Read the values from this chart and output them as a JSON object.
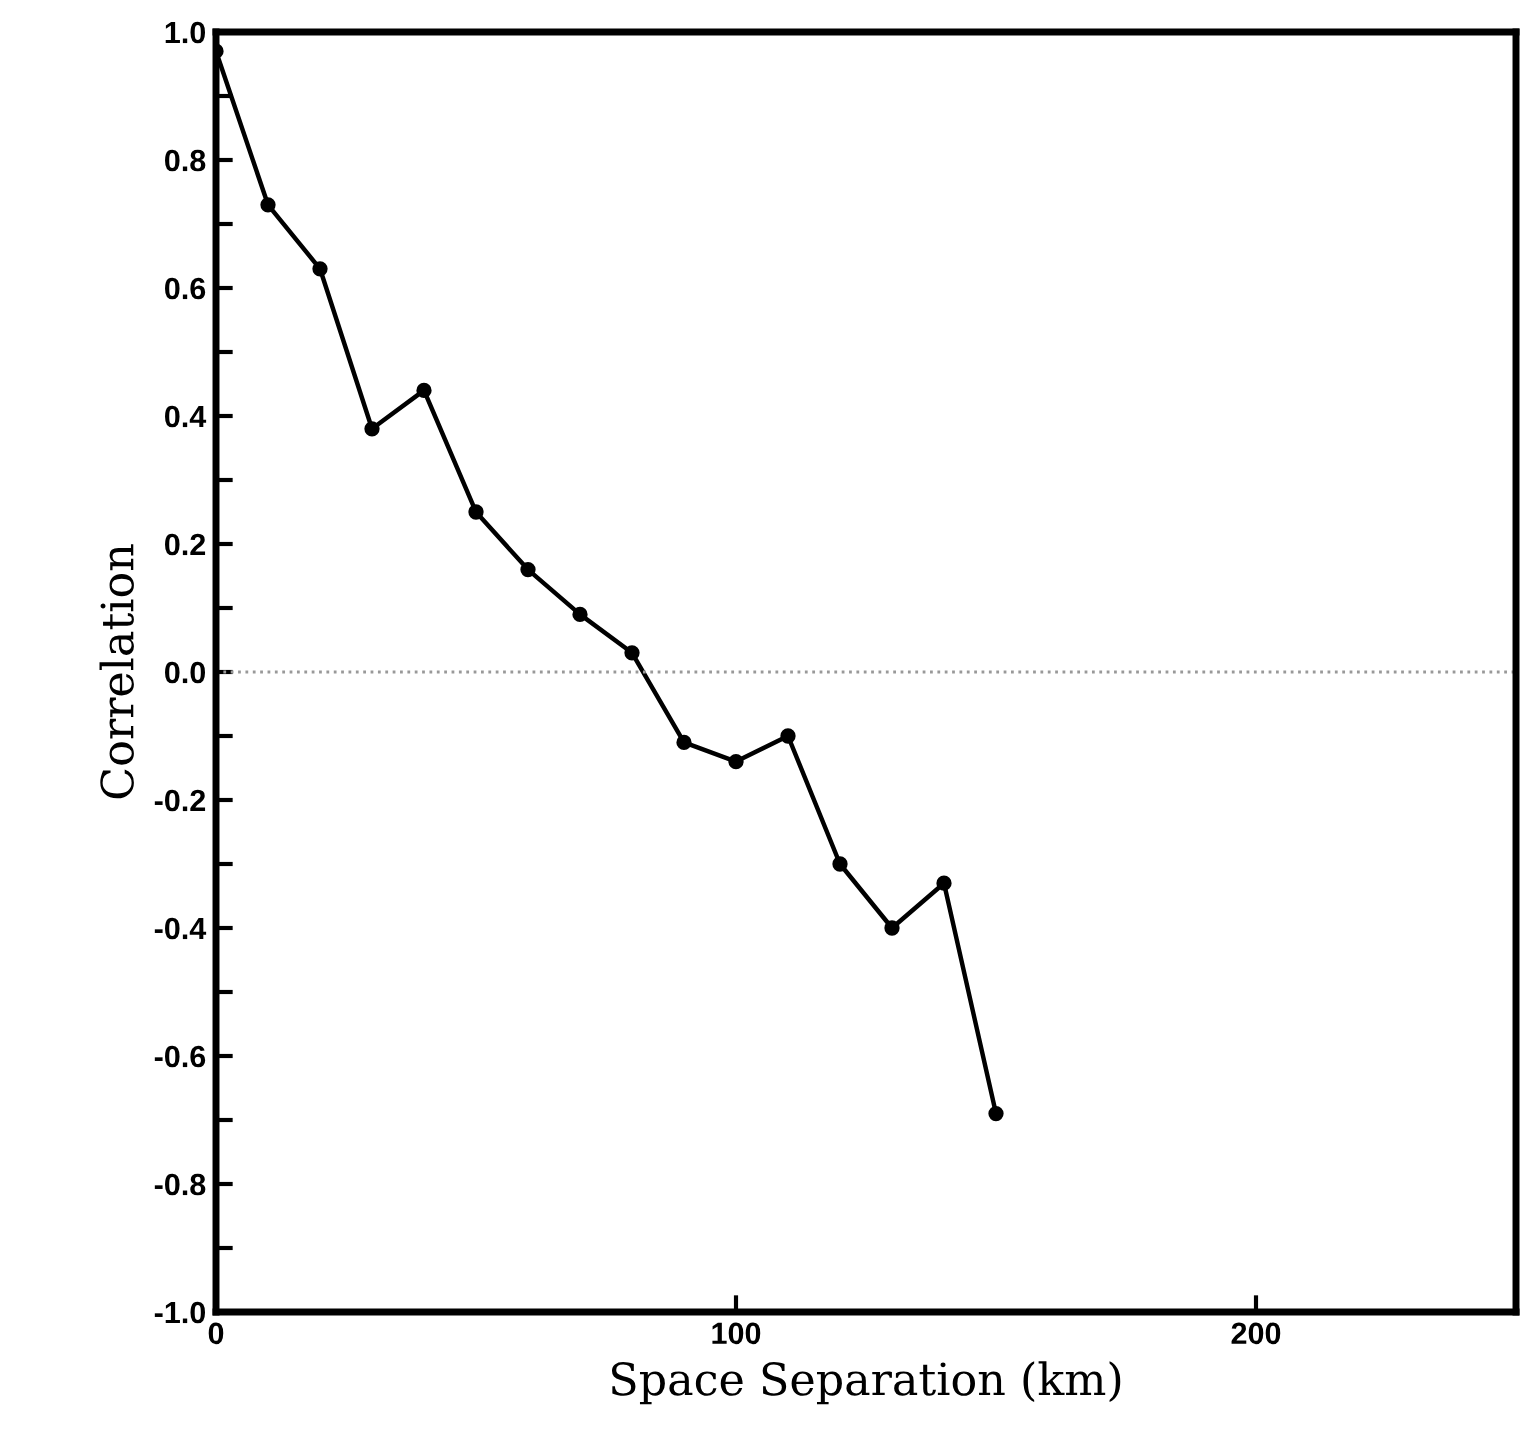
{
  "chart_data": {
    "type": "line",
    "xlabel": "Space Separation (km)",
    "ylabel": "Correlation",
    "x": [
      0,
      10,
      20,
      30,
      40,
      50,
      60,
      70,
      80,
      90,
      100,
      110,
      120,
      130,
      140,
      150
    ],
    "series": [
      {
        "color": "#000000",
        "values": [
          0.97,
          0.73,
          0.63,
          0.38,
          0.44,
          0.25,
          0.16,
          0.09,
          0.03,
          -0.11,
          -0.14,
          -0.1,
          -0.3,
          -0.4,
          -0.33,
          -0.69
        ]
      }
    ],
    "xlim": [
      0,
      250
    ],
    "ylim": [
      -1.0,
      1.0
    ],
    "xticks": [
      0,
      100,
      200
    ],
    "yticks": [
      {
        "value": -1.0,
        "label": "-1.0"
      },
      {
        "value": -0.9,
        "label": null
      },
      {
        "value": -0.8,
        "label": "-0.8"
      },
      {
        "value": -0.7,
        "label": null
      },
      {
        "value": -0.6,
        "label": "-0.6"
      },
      {
        "value": -0.5,
        "label": null
      },
      {
        "value": -0.4,
        "label": "-0.4"
      },
      {
        "value": -0.3,
        "label": null
      },
      {
        "value": -0.2,
        "label": "-0.2"
      },
      {
        "value": -0.1,
        "label": null
      },
      {
        "value": 0.0,
        "label": "0.0"
      },
      {
        "value": 0.1,
        "label": null
      },
      {
        "value": 0.2,
        "label": "0.2"
      },
      {
        "value": 0.3,
        "label": null
      },
      {
        "value": 0.4,
        "label": "0.4"
      },
      {
        "value": 0.5,
        "label": null
      },
      {
        "value": 0.6,
        "label": "0.6"
      },
      {
        "value": 0.7,
        "label": null
      },
      {
        "value": 0.8,
        "label": "0.8"
      },
      {
        "value": 0.9,
        "label": null
      },
      {
        "value": 1.0,
        "label": "1.0"
      }
    ],
    "ref_lines": [
      {
        "axis": "y",
        "value": 0,
        "color": "#999999",
        "line_style": "dotted"
      }
    ],
    "marker": "circle",
    "line_style": "solid",
    "grid": false,
    "legend": false
  }
}
